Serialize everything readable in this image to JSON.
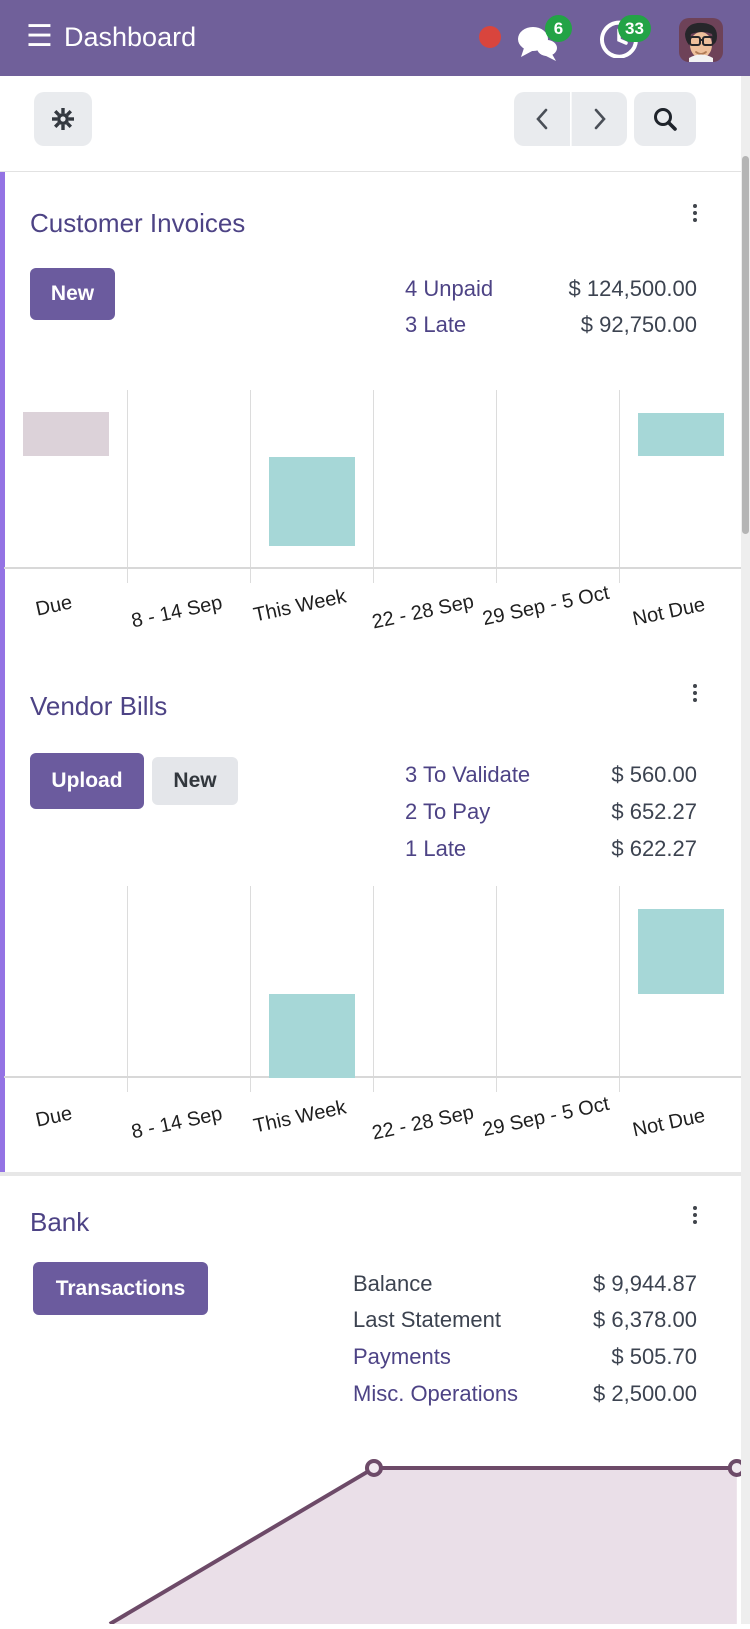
{
  "header": {
    "title": "Dashboard",
    "message_badge": "6",
    "activity_badge": "33",
    "accent_color": "#70609A",
    "badge_color": "#23A346",
    "status_dot_color": "#D9453D"
  },
  "cards": [
    {
      "title": "Customer Invoices",
      "primary_button": "New",
      "stats": [
        {
          "label": "4 Unpaid",
          "value": "$ 124,500.00"
        },
        {
          "label": "3 Late",
          "value": "$ 92,750.00"
        }
      ]
    },
    {
      "title": "Vendor Bills",
      "primary_button": "Upload",
      "secondary_button": "New",
      "stats": [
        {
          "label": "3 To Validate",
          "value": "$ 560.00"
        },
        {
          "label": "2 To Pay",
          "value": "$ 652.27"
        },
        {
          "label": "1 Late",
          "value": "$ 622.27"
        }
      ]
    },
    {
      "title": "Bank",
      "primary_button": "Transactions",
      "stats": [
        {
          "label": "Balance",
          "value": "$ 9,944.87",
          "plain": true
        },
        {
          "label": "Last Statement",
          "value": "$ 6,378.00",
          "plain": true
        },
        {
          "label": "Payments",
          "value": "$ 505.70"
        },
        {
          "label": "Misc. Operations",
          "value": "$ 2,500.00"
        }
      ]
    }
  ],
  "chart_data": [
    {
      "type": "bar",
      "title": "Customer Invoices by due period",
      "categories": [
        "Due",
        "8 - 14 Sep",
        "This Week",
        "22 - 28 Sep",
        "29 Sep - 5 Oct",
        "Not Due"
      ],
      "values": [
        24,
        0,
        48,
        0,
        0,
        23
      ],
      "unit": "relative bar height, % of plot (no numeric axis shown)",
      "xlabel": "",
      "ylabel": "",
      "grid": "vertical only",
      "legend": "none",
      "render": {
        "bars": [
          {
            "col": 0,
            "top_pct": 15.1,
            "height_pct": 23.8,
            "color": "#DCD2D9",
            "category": "Due"
          },
          {
            "col": 2,
            "top_pct": 39.5,
            "height_pct": 48.1,
            "color": "#A6D7D7",
            "category": "This Week"
          },
          {
            "col": 5,
            "top_pct": 15.7,
            "height_pct": 23.2,
            "color": "#A6D7D7",
            "category": "Not Due"
          }
        ]
      }
    },
    {
      "type": "bar",
      "title": "Vendor Bills by due period",
      "categories": [
        "Due",
        "8 - 14 Sep",
        "This Week",
        "22 - 28 Sep",
        "29 Sep - 5 Oct",
        "Not Due"
      ],
      "values": [
        0,
        0,
        42,
        0,
        0,
        43
      ],
      "unit": "relative bar height, % of plot (no numeric axis shown)",
      "xlabel": "",
      "ylabel": "",
      "grid": "vertical only",
      "legend": "none",
      "render": {
        "bars": [
          {
            "col": 2,
            "top_pct": 57.6,
            "height_pct": 42.4,
            "color": "#A6D7D7",
            "category": "This Week"
          },
          {
            "col": 5,
            "top_pct": 14.6,
            "height_pct": 42.9,
            "color": "#A6D7D7",
            "category": "Not Due"
          }
        ]
      }
    },
    {
      "type": "area",
      "title": "Bank balance over time (no axis labels visible)",
      "line_color": "#6D4A68",
      "fill_color": "#EADFE8",
      "marker_fill": "#F2E9F0",
      "points": [
        {
          "x_pct": 14.8,
          "y_pct": 100,
          "marker": false
        },
        {
          "x_pct": 50.4,
          "y_pct": 23.5,
          "marker": true
        },
        {
          "x_pct": 99.3,
          "y_pct": 23.5,
          "marker": true
        }
      ]
    }
  ]
}
